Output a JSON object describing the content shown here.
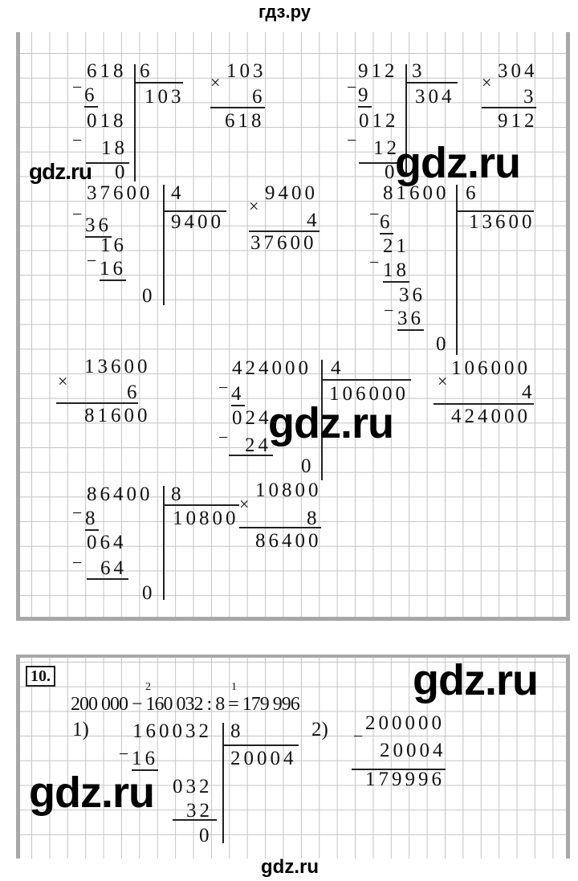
{
  "header": {
    "site": "гдз.ру"
  },
  "watermark": "gdz.ru",
  "footer": {
    "site": "gdz.ru"
  },
  "ops": {
    "minus": "−",
    "times": "×"
  },
  "a": {
    "dividend": "618",
    "divisor": "6",
    "q": "103",
    "s1": "6",
    "r1": "018",
    "s2": "18",
    "r": "0",
    "m1": "103",
    "m2": "6",
    "mp": "618"
  },
  "b": {
    "dividend": "912",
    "divisor": "3",
    "q": "304",
    "s1": "9",
    "r1": "012",
    "s2": "12",
    "r": "0",
    "m1": "304",
    "m2": "3",
    "mp": "912"
  },
  "c": {
    "dividend": "37600",
    "divisor": "4",
    "q": "9400",
    "s1": "36",
    "r1": "16",
    "s2": "16",
    "r": "0",
    "m1": "9400",
    "m2": "4",
    "mp": "37600"
  },
  "d": {
    "dividend": "81600",
    "divisor": "6",
    "q": "13600",
    "s1": "6",
    "r1": "21",
    "s2": "18",
    "r2": "36",
    "s3": "36",
    "r": "0"
  },
  "e": {
    "m1": "13600",
    "m2": "6",
    "mp": "81600"
  },
  "f": {
    "dividend": "424000",
    "divisor": "4",
    "q": "106000",
    "s1": "4",
    "r1": "024",
    "s2": "24",
    "r": "0",
    "m1": "106000",
    "m2": "4",
    "mp": "424000"
  },
  "g": {
    "dividend": "86400",
    "divisor": "8",
    "q": "10800",
    "s1": "8",
    "r1": "064",
    "s2": "64",
    "r": "0",
    "m1": "10800",
    "m2": "8",
    "mp": "86400"
  },
  "task10": {
    "number": "10.",
    "expression": "200 000 − 160 032 : 8 = 179 996",
    "order1": "1",
    "order2": "2",
    "step1": "1)",
    "dividend": "160032",
    "divisor": "8",
    "q": "20004",
    "s1": "16",
    "r1": "032",
    "s2": "32",
    "r": "0",
    "step2": "2)",
    "a": "200000",
    "b": "20004",
    "diff": "179996"
  }
}
